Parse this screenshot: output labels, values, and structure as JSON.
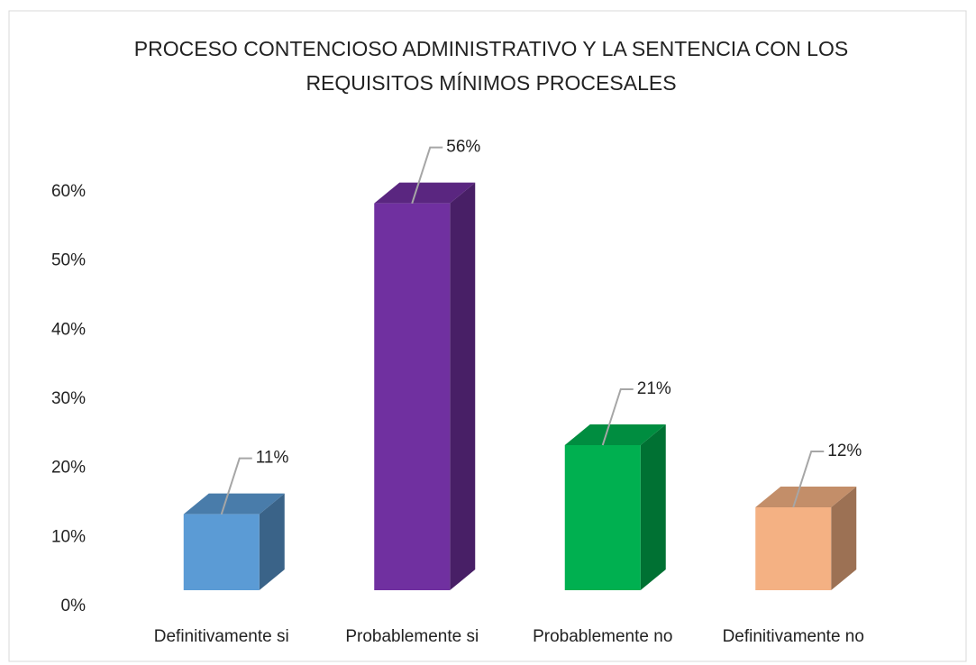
{
  "chart_data": {
    "type": "bar3d",
    "title": [
      "PROCESO CONTENCIOSO ADMINISTRATIVO  Y LA SENTENCIA CON LOS",
      "REQUISITOS MÍNIMOS PROCESALES"
    ],
    "categories": [
      "Definitivamente si",
      "Probablemente si",
      "Probablemente no",
      "Definitivamente no"
    ],
    "values": [
      11,
      56,
      21,
      12
    ],
    "value_labels": [
      "11%",
      "56%",
      "21%",
      "12%"
    ],
    "colors": [
      "#5b9bd5",
      "#7030a0",
      "#00b050",
      "#f4b183"
    ],
    "ylim": [
      0,
      60
    ],
    "yticks": [
      {
        "value": 0,
        "label": "0%"
      },
      {
        "value": 10,
        "label": "10%"
      },
      {
        "value": 20,
        "label": "20%"
      },
      {
        "value": 30,
        "label": "30%"
      },
      {
        "value": 40,
        "label": "40%"
      },
      {
        "value": 50,
        "label": "50%"
      },
      {
        "value": 60,
        "label": "60%"
      }
    ],
    "grid": false
  }
}
